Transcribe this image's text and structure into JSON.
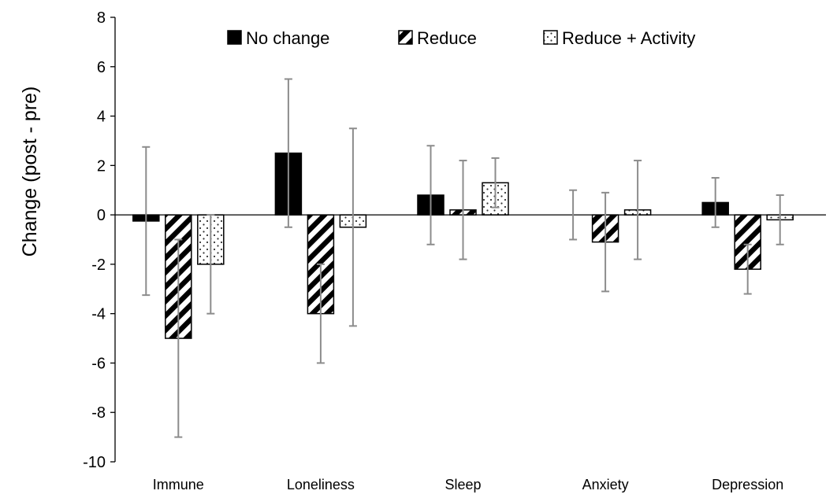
{
  "chart_data": {
    "type": "bar",
    "title": "",
    "xlabel": "",
    "ylabel": "Change (post - pre)",
    "ylim": [
      -10,
      8
    ],
    "yticks": [
      8,
      6,
      4,
      2,
      0,
      -2,
      -4,
      -6,
      -8,
      -10
    ],
    "ytick_labels": [
      "8",
      "6",
      "4",
      "2",
      "0",
      "-2",
      "-4",
      "-6",
      "-8",
      "-10"
    ],
    "categories": [
      "Immune",
      "Loneliness",
      "Sleep",
      "Anxiety",
      "Depression"
    ],
    "grid": false,
    "legend_position": "top",
    "series": [
      {
        "name": "No change",
        "pattern": "solid",
        "color": "#000000",
        "values": [
          -0.25,
          2.5,
          0.8,
          0.0,
          0.5
        ],
        "error_low": [
          -3.25,
          -0.5,
          -1.2,
          -1.0,
          -0.5
        ],
        "error_high": [
          2.75,
          5.5,
          2.8,
          1.0,
          1.5
        ]
      },
      {
        "name": "Reduce",
        "pattern": "diagonal-stripes",
        "color": "#000000",
        "values": [
          -5.0,
          -4.0,
          0.2,
          -1.1,
          -2.2
        ],
        "error_low": [
          -9.0,
          -6.0,
          -1.8,
          -3.1,
          -3.2
        ],
        "error_high": [
          -1.0,
          -2.0,
          2.2,
          0.9,
          -1.2
        ]
      },
      {
        "name": "Reduce + Activity",
        "pattern": "dots",
        "color": "#000000",
        "values": [
          -2.0,
          -0.5,
          1.3,
          0.2,
          -0.2
        ],
        "error_low": [
          -4.0,
          -4.5,
          0.3,
          -1.8,
          -1.2
        ],
        "error_high": [
          0.0,
          3.5,
          2.3,
          2.2,
          0.8
        ]
      }
    ],
    "error_bar_color": "#8c8c8c"
  }
}
